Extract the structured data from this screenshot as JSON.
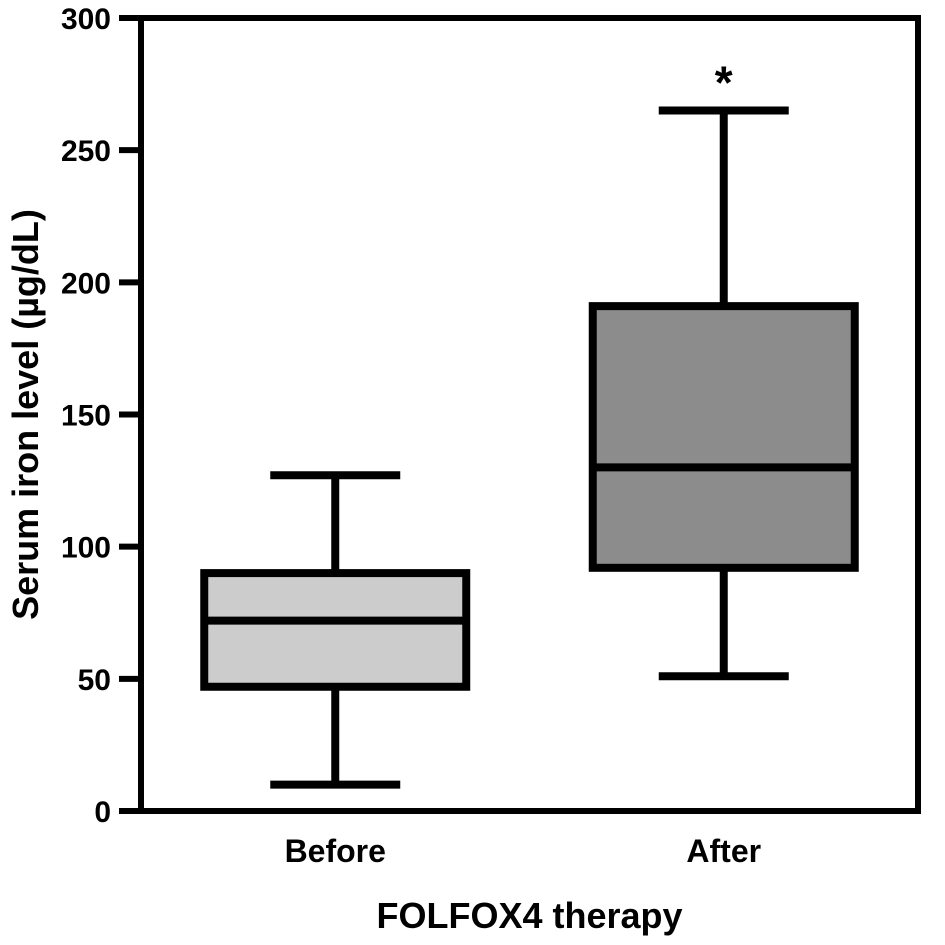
{
  "chart_data": {
    "type": "box",
    "title": "",
    "xlabel": "FOLFOX4 therapy",
    "ylabel": "Serum iron level (µg/dL)",
    "ylim": [
      0,
      300
    ],
    "yticks": [
      0,
      50,
      100,
      150,
      200,
      250,
      300
    ],
    "grid": false,
    "legend": "none",
    "categories": [
      "Before",
      "After"
    ],
    "boxes": [
      {
        "name": "Before",
        "min": 10,
        "q1": 47,
        "median": 72,
        "q3": 90,
        "max": 127,
        "color": "#cccccc",
        "annotation": ""
      },
      {
        "name": "After",
        "min": 51,
        "q1": 92,
        "median": 130,
        "q3": 191,
        "max": 265,
        "color": "#8c8c8c",
        "annotation": "*"
      }
    ]
  }
}
